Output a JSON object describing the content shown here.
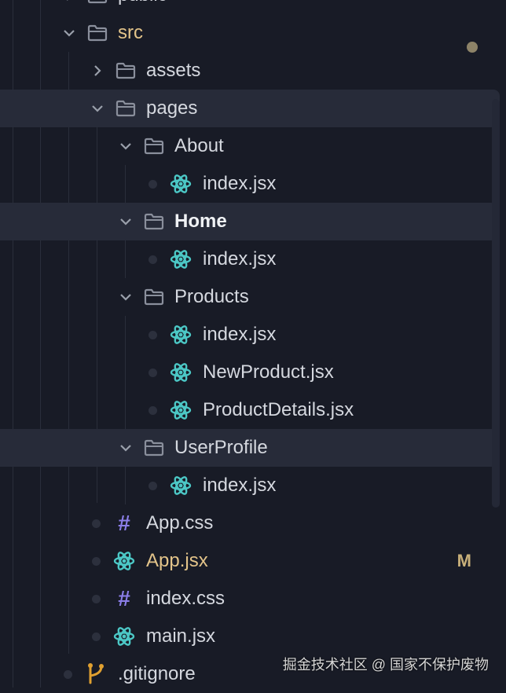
{
  "explorer": {
    "items": [
      {
        "label": "public",
        "type": "folder",
        "depth": 1,
        "expanded": false
      },
      {
        "label": "src",
        "type": "folder",
        "depth": 1,
        "expanded": true,
        "status": "modified-dot"
      },
      {
        "label": "assets",
        "type": "folder",
        "depth": 2,
        "expanded": false
      },
      {
        "label": "pages",
        "type": "folder",
        "depth": 2,
        "expanded": true,
        "highlighted": true
      },
      {
        "label": "About",
        "type": "folder",
        "depth": 3,
        "expanded": true
      },
      {
        "label": "index.jsx",
        "type": "react-file",
        "depth": 4
      },
      {
        "label": "Home",
        "type": "folder",
        "depth": 3,
        "expanded": true,
        "highlighted": true,
        "bold": true
      },
      {
        "label": "index.jsx",
        "type": "react-file",
        "depth": 4
      },
      {
        "label": "Products",
        "type": "folder",
        "depth": 3,
        "expanded": true
      },
      {
        "label": "index.jsx",
        "type": "react-file",
        "depth": 4
      },
      {
        "label": "NewProduct.jsx",
        "type": "react-file",
        "depth": 4
      },
      {
        "label": "ProductDetails.jsx",
        "type": "react-file",
        "depth": 4
      },
      {
        "label": "UserProfile",
        "type": "folder",
        "depth": 3,
        "expanded": true,
        "highlighted": true
      },
      {
        "label": "index.jsx",
        "type": "react-file",
        "depth": 4
      },
      {
        "label": "App.css",
        "type": "css-file",
        "depth": 2
      },
      {
        "label": "App.jsx",
        "type": "react-file",
        "depth": 2,
        "modified": true,
        "badge": "M"
      },
      {
        "label": "index.css",
        "type": "css-file",
        "depth": 2
      },
      {
        "label": "main.jsx",
        "type": "react-file",
        "depth": 2
      },
      {
        "label": ".gitignore",
        "type": "git-file",
        "depth": 1
      }
    ]
  },
  "watermark": "掘金技术社区 @ 国家不保护废物",
  "colors": {
    "background": "#181b26",
    "highlight": "#272b39",
    "react": "#4cc8c6",
    "css": "#8b7ee8",
    "git": "#e0a030",
    "modified": "#e3c48a"
  }
}
